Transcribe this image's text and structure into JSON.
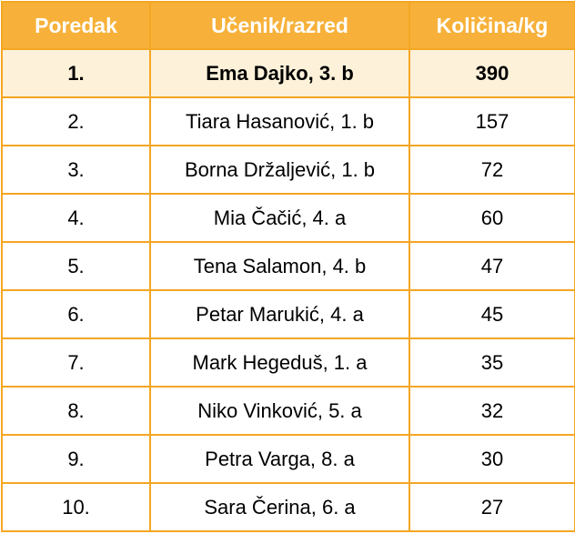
{
  "table": {
    "headers": {
      "rank": "Poredak",
      "student": "Učenik/razred",
      "quantity": "Količina/kg"
    },
    "rows": [
      {
        "rank": "1.",
        "student": "Ema Dajko, 3. b",
        "quantity": "390"
      },
      {
        "rank": "2.",
        "student": "Tiara Hasanović, 1. b",
        "quantity": "157"
      },
      {
        "rank": "3.",
        "student": "Borna Držaljević, 1. b",
        "quantity": "72"
      },
      {
        "rank": "4.",
        "student": "Mia Čačić, 4. a",
        "quantity": "60"
      },
      {
        "rank": "5.",
        "student": "Tena Salamon, 4. b",
        "quantity": "47"
      },
      {
        "rank": "6.",
        "student": "Petar Marukić, 4. a",
        "quantity": "45"
      },
      {
        "rank": "7.",
        "student": "Mark Hegeduš, 1. a",
        "quantity": "35"
      },
      {
        "rank": "8.",
        "student": "Niko Vinković, 5. a",
        "quantity": "32"
      },
      {
        "rank": "9.",
        "student": "Petra Varga, 8. a",
        "quantity": "30"
      },
      {
        "rank": "10.",
        "student": "Sara Čerina, 6. a",
        "quantity": "27"
      }
    ]
  },
  "colors": {
    "header_background": "#f7b13a",
    "border": "#f5a623",
    "winner_row_background": "#fdf1d9"
  }
}
